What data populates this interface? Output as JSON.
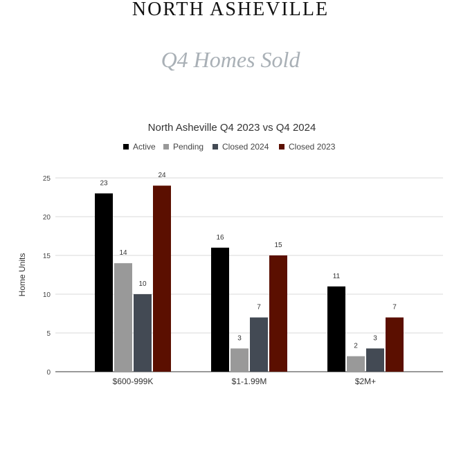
{
  "header": {
    "brand": "NORTH ASHEVILLE",
    "subtitle": "Q4 Homes Sold"
  },
  "chart_data": {
    "type": "bar",
    "title": "North Asheville Q4 2023 vs Q4 2024",
    "xlabel": "",
    "ylabel": "Home Units",
    "ylim": [
      0,
      25
    ],
    "yticks": [
      0,
      5,
      10,
      15,
      20,
      25
    ],
    "grid": true,
    "legend_position": "top",
    "categories": [
      "$600-999K",
      "$1-1.99M",
      "$2M+"
    ],
    "series": [
      {
        "name": "Active",
        "color": "#000000",
        "values": [
          23,
          16,
          11
        ]
      },
      {
        "name": "Pending",
        "color": "#999999",
        "values": [
          14,
          3,
          2
        ]
      },
      {
        "name": "Closed 2024",
        "color": "#434a54",
        "values": [
          10,
          7,
          3
        ]
      },
      {
        "name": "Closed 2023",
        "color": "#5b0f00",
        "values": [
          24,
          15,
          7
        ]
      }
    ]
  }
}
